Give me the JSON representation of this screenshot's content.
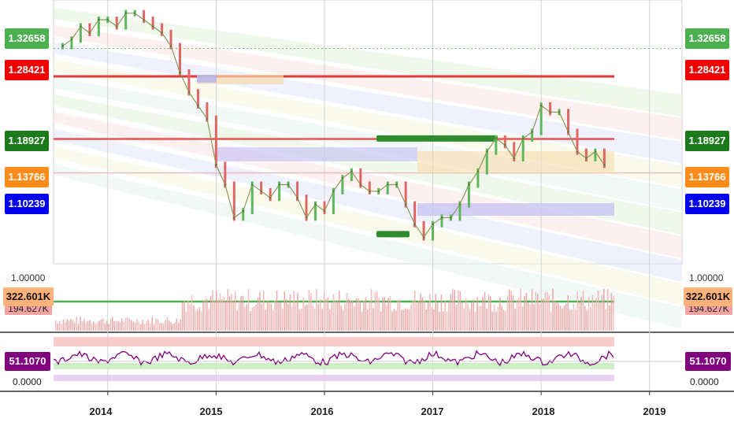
{
  "chart_data": {
    "type": "line",
    "x_ticks": [
      "2014",
      "2015",
      "2016",
      "2017",
      "2018",
      "2019"
    ],
    "price_panel": {
      "levels": [
        {
          "value": "1.32658",
          "color": "#4caf50",
          "line": "dotted"
        },
        {
          "value": "1.28421",
          "color": "#f00000",
          "line": "solid"
        },
        {
          "value": "1.18927",
          "color": "#1b7a1b",
          "line": "solid-red"
        },
        {
          "value": "1.13766",
          "color": "#ff8c1a",
          "line": "faint"
        },
        {
          "value": "1.10239",
          "color": "#0000ee",
          "line": "band"
        }
      ],
      "series": {
        "name": "",
        "x": [
          "2013-08",
          "2013-09",
          "2013-10",
          "2013-11",
          "2013-12",
          "2014-01",
          "2014-02",
          "2014-03",
          "2014-04",
          "2014-05",
          "2014-06",
          "2014-07",
          "2014-08",
          "2014-09",
          "2014-10",
          "2014-11",
          "2014-12",
          "2015-01",
          "2015-02",
          "2015-03",
          "2015-04",
          "2015-05",
          "2015-06",
          "2015-07",
          "2015-08",
          "2015-09",
          "2015-10",
          "2015-11",
          "2015-12",
          "2016-01",
          "2016-02",
          "2016-03",
          "2016-04",
          "2016-05",
          "2016-06",
          "2016-07",
          "2016-08",
          "2016-09",
          "2016-10",
          "2016-11",
          "2016-12",
          "2017-01",
          "2017-02",
          "2017-03",
          "2017-04",
          "2017-05",
          "2017-06",
          "2017-07",
          "2017-08",
          "2017-09",
          "2017-10",
          "2017-11",
          "2017-12",
          "2018-01",
          "2018-02",
          "2018-03",
          "2018-04",
          "2018-05",
          "2018-06",
          "2018-07",
          "2018-08"
        ],
        "values": [
          1.33,
          1.34,
          1.36,
          1.35,
          1.37,
          1.37,
          1.36,
          1.38,
          1.38,
          1.37,
          1.36,
          1.35,
          1.33,
          1.29,
          1.26,
          1.24,
          1.22,
          1.15,
          1.12,
          1.07,
          1.08,
          1.12,
          1.11,
          1.1,
          1.12,
          1.12,
          1.1,
          1.07,
          1.09,
          1.08,
          1.11,
          1.13,
          1.14,
          1.12,
          1.11,
          1.11,
          1.12,
          1.12,
          1.09,
          1.06,
          1.04,
          1.06,
          1.07,
          1.07,
          1.09,
          1.12,
          1.14,
          1.17,
          1.19,
          1.18,
          1.16,
          1.19,
          1.2,
          1.24,
          1.23,
          1.23,
          1.2,
          1.17,
          1.16,
          1.17,
          1.15
        ]
      },
      "zones": [
        {
          "label": "",
          "color": "#2e8b2e",
          "value": 1.19
        },
        {
          "label": "",
          "color": "#2e8b2e",
          "value": 1.045
        }
      ]
    },
    "volume_panel": {
      "labels": [
        "1.00000",
        "322.601K",
        "194.627K"
      ],
      "level_color": "#4caf50"
    },
    "oscillator_panel": {
      "labels": [
        "51.1070",
        "0.0000"
      ],
      "color": "#800080"
    },
    "colors": {
      "up": "#5cb85c",
      "down": "#e06666",
      "vline": "#d2d2d2"
    }
  },
  "left_tags": [
    "1.32658",
    "1.28421",
    "1.18927",
    "1.13766",
    "1.10239"
  ],
  "right_tags": [
    "1.32658",
    "1.28421",
    "1.18927",
    "1.13766",
    "1.10239"
  ],
  "volume_tags": {
    "value": "322.601K",
    "scale": "1.00000",
    "secondary": "194.627K"
  },
  "osc_tags": {
    "value": "51.1070",
    "zero": "0.0000"
  }
}
